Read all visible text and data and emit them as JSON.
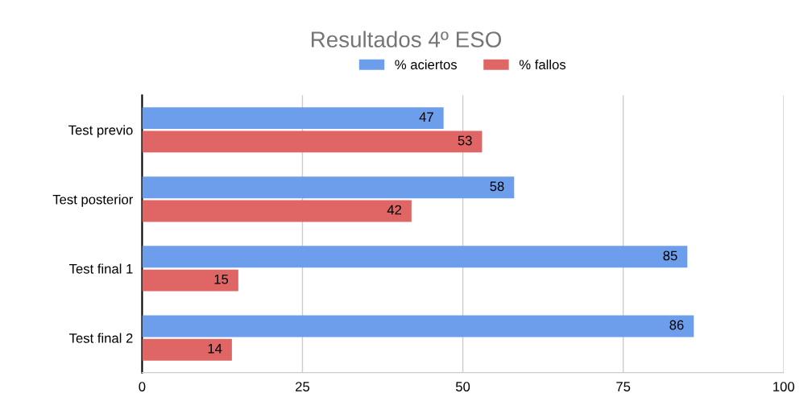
{
  "chart_data": {
    "type": "bar",
    "orientation": "horizontal",
    "title": "Resultados 4º ESO",
    "categories": [
      "Test previo",
      "Test posterior",
      "Test final 1",
      "Test final 2"
    ],
    "series": [
      {
        "name": "% aciertos",
        "color": "#6d9eeb",
        "values": [
          47,
          58,
          85,
          86
        ]
      },
      {
        "name": "% fallos",
        "color": "#e06666",
        "values": [
          53,
          42,
          15,
          14
        ]
      }
    ],
    "xlim": [
      0,
      100
    ],
    "xticks": [
      0,
      25,
      50,
      75,
      100
    ],
    "grid": "x",
    "legend": "top",
    "data_labels": true
  }
}
